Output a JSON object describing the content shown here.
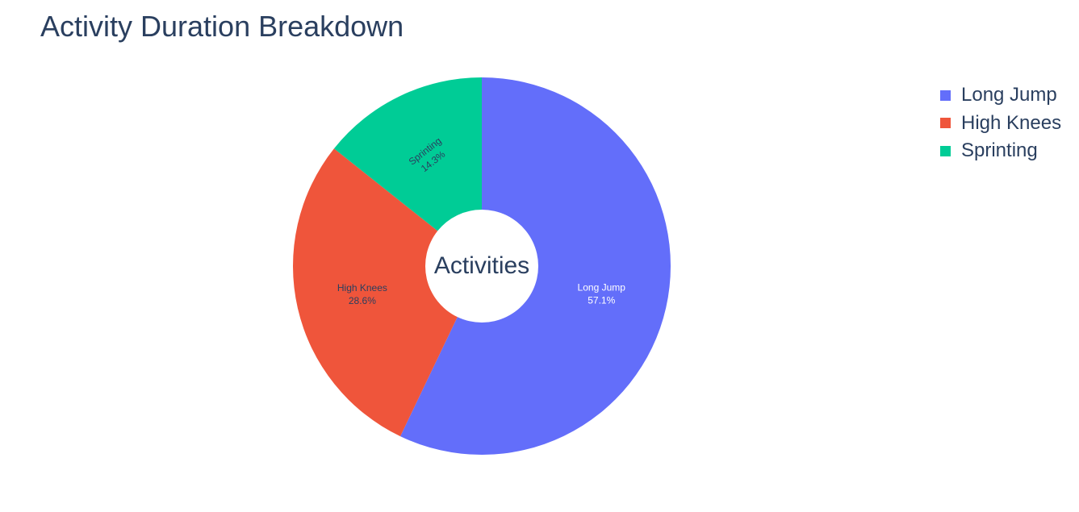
{
  "chart_data": {
    "type": "pie",
    "title": "Activity Duration Breakdown",
    "hole_label": "Activities",
    "categories": [
      "Long Jump",
      "High Knees",
      "Sprinting"
    ],
    "values": [
      57.1,
      28.6,
      14.3
    ],
    "value_labels": [
      "57.1%",
      "28.6%",
      "14.3%"
    ],
    "colors": [
      "#636efa",
      "#ef553b",
      "#00cc96"
    ],
    "label_colors": [
      "#ffffff",
      "#2a3f5f",
      "#2a3f5f"
    ],
    "donut": true,
    "legend_position": "top-right"
  }
}
